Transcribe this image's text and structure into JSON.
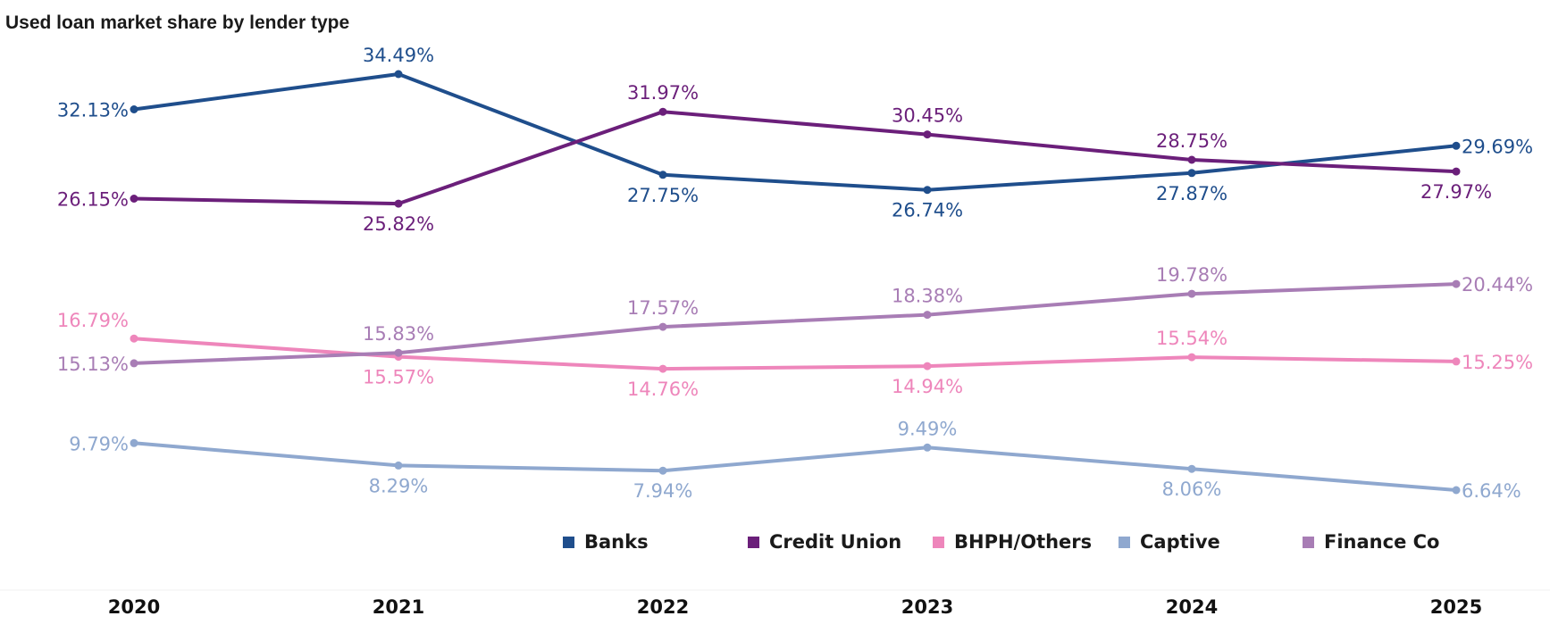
{
  "chart_data": {
    "type": "line",
    "title": "Used loan market share by lender type",
    "categories": [
      "2020",
      "2021",
      "2022",
      "2023",
      "2024",
      "2025"
    ],
    "series": [
      {
        "name": "Banks",
        "color": "#1f4e8c",
        "values": [
          32.13,
          34.49,
          27.75,
          26.74,
          27.87,
          29.69
        ],
        "labels": [
          "32.13%",
          "34.49%",
          "27.75%",
          "26.74%",
          "27.87%",
          "29.69%"
        ]
      },
      {
        "name": "Credit Union",
        "color": "#6b1f7a",
        "values": [
          26.15,
          25.82,
          31.97,
          30.45,
          28.75,
          27.97
        ],
        "labels": [
          "26.15%",
          "25.82%",
          "31.97%",
          "30.45%",
          "28.75%",
          "27.97%"
        ]
      },
      {
        "name": "BHPH/Others",
        "color": "#ee86bb",
        "values": [
          16.79,
          15.57,
          14.76,
          14.94,
          15.54,
          15.25
        ],
        "labels": [
          "16.79%",
          "15.57%",
          "14.76%",
          "14.94%",
          "15.54%",
          "15.25%"
        ]
      },
      {
        "name": "Captive",
        "color": "#8fa8cf",
        "values": [
          9.79,
          8.29,
          7.94,
          9.49,
          8.06,
          6.64
        ],
        "labels": [
          "9.79%",
          "8.29%",
          "7.94%",
          "9.49%",
          "8.06%",
          "6.64%"
        ]
      },
      {
        "name": "Finance Co",
        "color": "#a87db5",
        "values": [
          15.13,
          15.83,
          17.57,
          18.38,
          19.78,
          20.44
        ],
        "labels": [
          "15.13%",
          "15.83%",
          "17.57%",
          "18.38%",
          "19.78%",
          "20.44%"
        ]
      }
    ],
    "legend_position": "bottom",
    "grid": false
  }
}
